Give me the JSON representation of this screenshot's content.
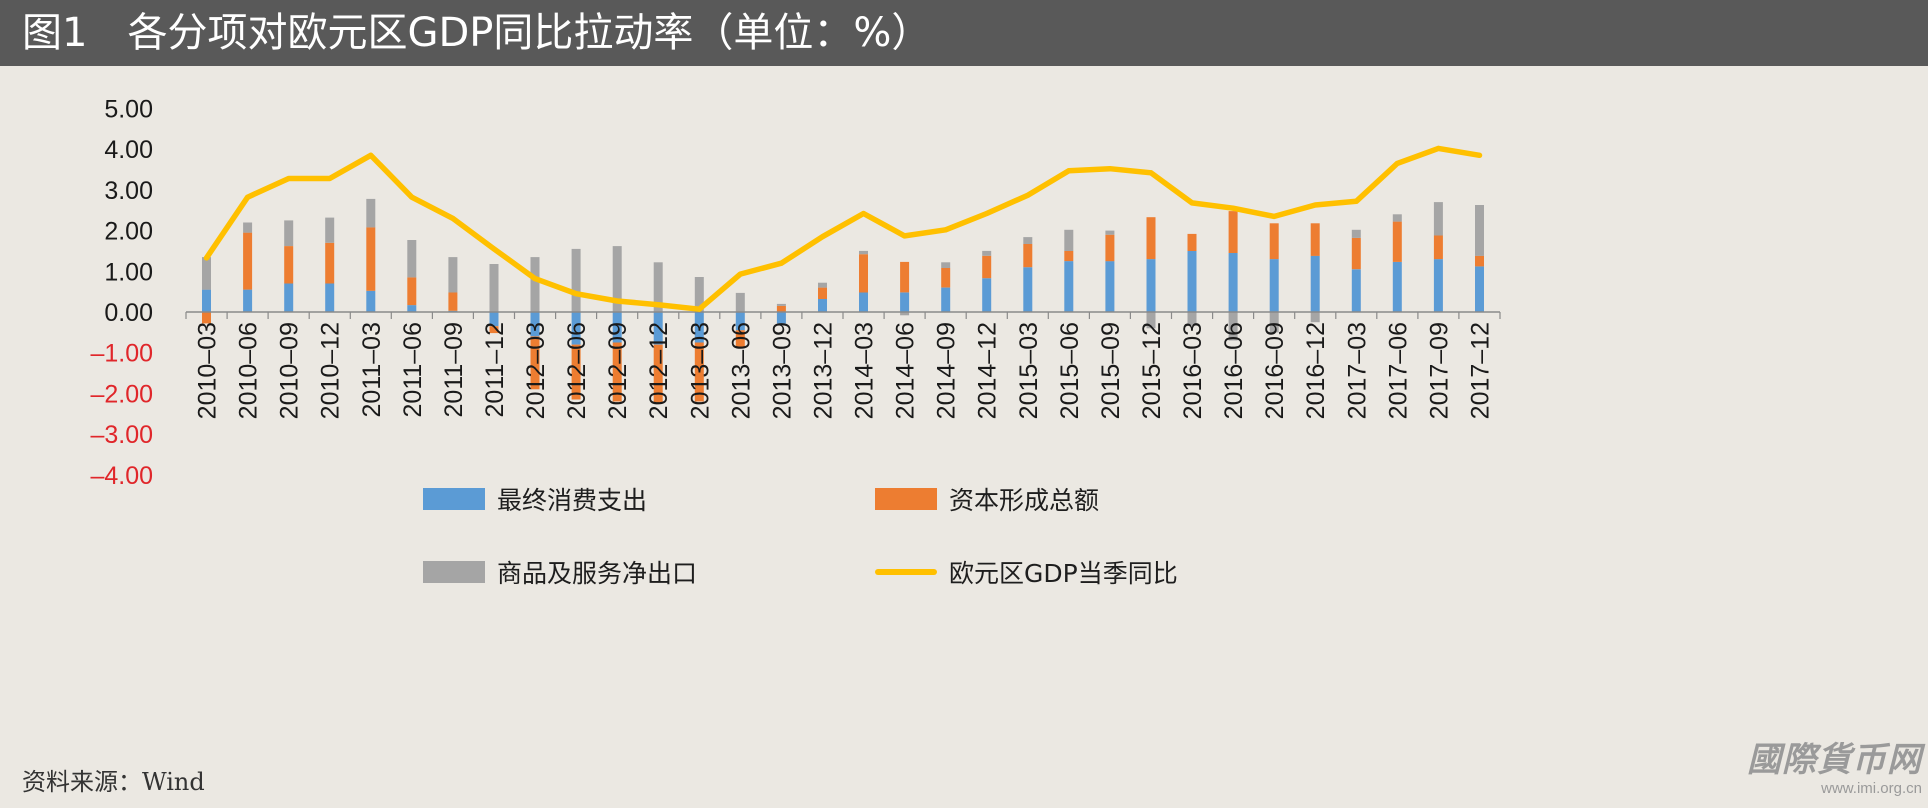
{
  "title": "图1　各分项对欧元区GDP同比拉动率（单位：%）",
  "chart_data": {
    "type": "bar",
    "stacked": true,
    "categories": [
      "2010–03",
      "2010–06",
      "2010–09",
      "2010–12",
      "2011–03",
      "2011–06",
      "2011–09",
      "2011–12",
      "2012–03",
      "2012–06",
      "2012–09",
      "2012–12",
      "2013–03",
      "2013–06",
      "2013–09",
      "2013–12",
      "2014–03",
      "2014–06",
      "2014–09",
      "2014–12",
      "2015–03",
      "2015–06",
      "2015–09",
      "2015–12",
      "2016–03",
      "2016–06",
      "2016–09",
      "2016–12",
      "2017–03",
      "2017–06",
      "2017–09",
      "2017–12"
    ],
    "series": [
      {
        "name": "最终消费支出",
        "type": "bar",
        "color": "#5b9bd5",
        "values": [
          0.55,
          0.55,
          0.7,
          0.7,
          0.52,
          0.17,
          0.03,
          -0.35,
          -0.6,
          -0.8,
          -0.75,
          -0.8,
          -0.75,
          -0.45,
          -0.28,
          0.32,
          0.48,
          0.48,
          0.6,
          0.83,
          1.1,
          1.25,
          1.25,
          1.3,
          1.5,
          1.45,
          1.3,
          1.38,
          1.05,
          1.23,
          1.3,
          1.12
        ]
      },
      {
        "name": "资本形成总额",
        "type": "bar",
        "color": "#ed7d31",
        "values": [
          -0.28,
          1.4,
          0.92,
          1.0,
          1.56,
          0.68,
          0.45,
          -0.17,
          -1.3,
          -1.35,
          -1.45,
          -1.45,
          -1.45,
          -0.4,
          0.15,
          0.28,
          0.94,
          0.75,
          0.48,
          0.55,
          0.57,
          0.25,
          0.65,
          1.03,
          0.42,
          1.03,
          0.88,
          0.8,
          0.77,
          0.99,
          0.58,
          0.26
        ]
      },
      {
        "name": "商品及服务净出口",
        "type": "bar",
        "color": "#a5a5a5",
        "values": [
          0.8,
          0.25,
          0.63,
          0.62,
          0.7,
          0.92,
          0.87,
          1.18,
          1.35,
          1.55,
          1.62,
          1.22,
          0.86,
          0.47,
          0.05,
          0.12,
          0.08,
          -0.08,
          0.14,
          0.12,
          0.17,
          0.52,
          0.1,
          -0.4,
          -0.33,
          -0.7,
          -0.5,
          -0.25,
          0.2,
          0.18,
          0.82,
          1.25
        ]
      },
      {
        "name": "欧元区GDP当季同比",
        "type": "line",
        "color": "#ffc000",
        "values": [
          1.33,
          2.82,
          3.28,
          3.28,
          3.85,
          2.82,
          2.3,
          1.55,
          0.82,
          0.45,
          0.27,
          0.18,
          0.07,
          0.93,
          1.2,
          1.85,
          2.42,
          1.87,
          2.02,
          2.42,
          2.87,
          3.47,
          3.52,
          3.42,
          2.68,
          2.55,
          2.35,
          2.63,
          2.72,
          3.65,
          4.02,
          3.85
        ]
      }
    ],
    "ylim": [
      -4,
      5
    ],
    "yticks": [
      5,
      4,
      3,
      2,
      1,
      0,
      -1,
      -2,
      -3,
      -4
    ],
    "ytick_labels": [
      "5.00",
      "4.00",
      "3.00",
      "2.00",
      "1.00",
      "0.00",
      "–1.00",
      "–2.00",
      "–3.00",
      "–4.00"
    ],
    "negative_tick_color": "#e0262a",
    "grid": false,
    "legend_position": "bottom"
  },
  "source": "资料来源：Wind",
  "watermark": {
    "logo": "國際貨币网",
    "url": "www.imi.org.cn"
  }
}
